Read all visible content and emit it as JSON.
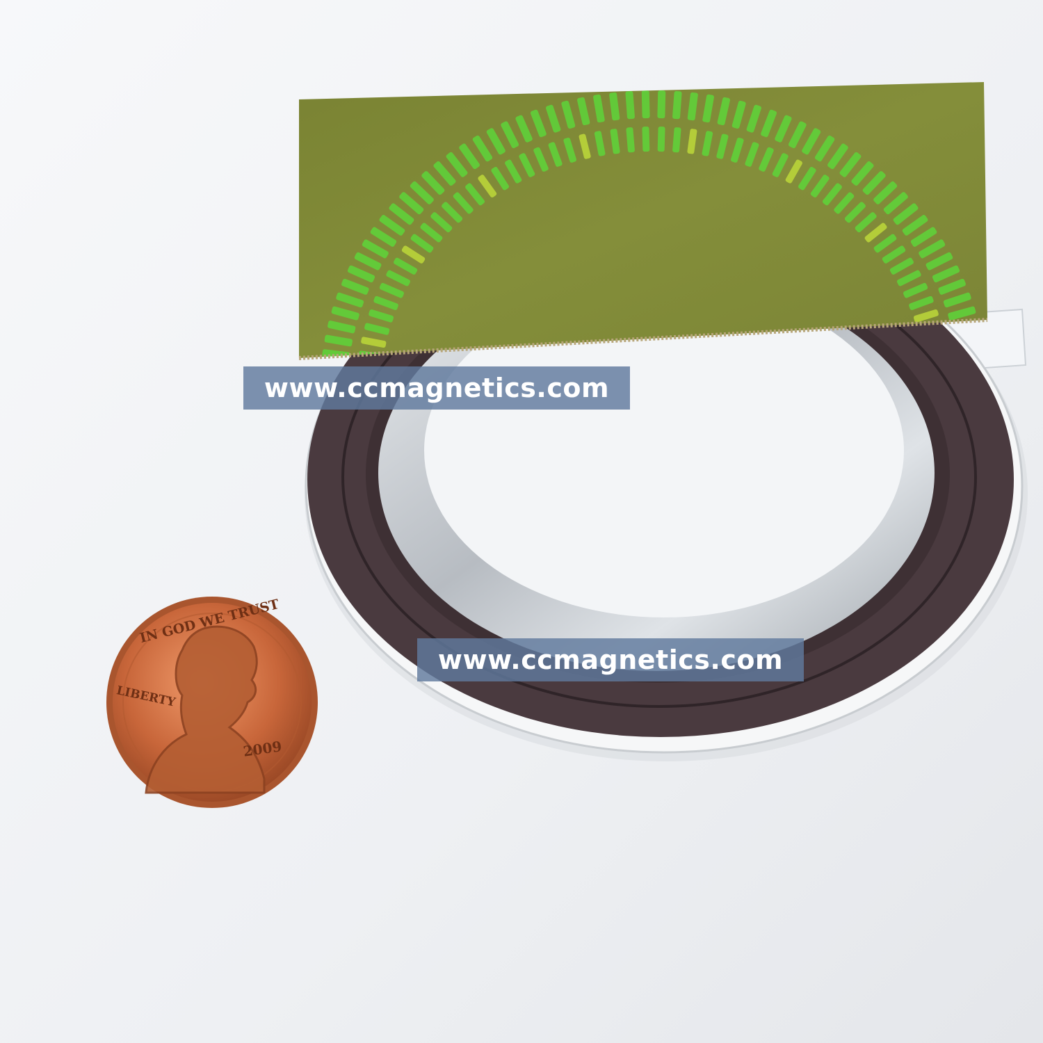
{
  "watermarks": [
    {
      "text": "www.ccmagnetics.com"
    },
    {
      "text": "www.ccmagnetics.com"
    }
  ],
  "coin": {
    "motto": "IN GOD WE TRUST",
    "legend": "LIBERTY",
    "year": "2009"
  },
  "colors": {
    "background": "#f2f3f5",
    "magnetic_ring": "#4a3a3f",
    "metal_hub": "#c4c8cc",
    "viewer_film": "#7f8a35",
    "pole_pattern": "#5fd03a",
    "coin_copper": "#c8663a"
  }
}
